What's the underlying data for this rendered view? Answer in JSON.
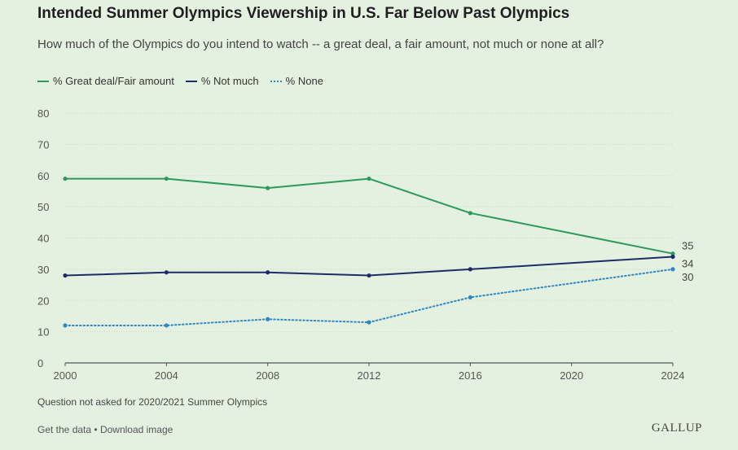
{
  "chart_data": {
    "type": "line",
    "title": "Intended Summer Olympics Viewership in U.S. Far Below Past Olympics",
    "subtitle": "How much of the Olympics do you intend to watch -- a great deal, a fair amount, not much or none at all?",
    "x": [
      2000,
      2004,
      2008,
      2012,
      2016,
      2024
    ],
    "x_ticks": [
      "2000",
      "2004",
      "2008",
      "2012",
      "2016",
      "2020",
      "2024"
    ],
    "y_ticks": [
      0,
      10,
      20,
      30,
      40,
      50,
      60,
      70,
      80
    ],
    "xlim": [
      2000,
      2024
    ],
    "ylim": [
      0,
      80
    ],
    "series": [
      {
        "name": "% Great deal/Fair amount",
        "color": "#2b9a5b",
        "style": "solid",
        "values": [
          59,
          59,
          56,
          59,
          48,
          35
        ],
        "end_label": "35"
      },
      {
        "name": "% Not much",
        "color": "#1f2a68",
        "style": "solid",
        "values": [
          28,
          29,
          29,
          28,
          30,
          34
        ],
        "end_label": "34"
      },
      {
        "name": "% None",
        "color": "#2f87c4",
        "style": "dotted",
        "values": [
          12,
          12,
          14,
          13,
          21,
          30
        ],
        "end_label": "30"
      }
    ],
    "footnote": "Question not asked for 2020/2021 Summer Olympics"
  },
  "legend": {
    "great": "% Great deal/Fair amount",
    "notmuch": "% Not much",
    "none": "% None"
  },
  "footer": {
    "get_data": "Get the data",
    "separator": "•",
    "download": "Download image",
    "brand": "GALLUP"
  }
}
